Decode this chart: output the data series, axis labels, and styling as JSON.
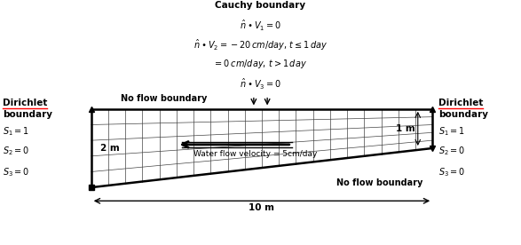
{
  "title": "Cauchy boundary",
  "eq1": "$\\hat{n}\\bullet V_1 = 0$",
  "eq2": "$\\hat{n}\\bullet V_2 = -20\\,cm/day,\\, t\\leq 1\\,day$",
  "eq3": "$= 0\\,cm/day,\\, t > 1\\,day$",
  "eq4": "$\\hat{n}\\bullet V_3 = 0$",
  "no_flow_top": "No flow boundary",
  "no_flow_bottom": "No flow boundary",
  "left_label1": "Dirichlet",
  "left_label2": "boundary",
  "left_s1": "$S_1 = 1$",
  "left_s2": "$S_2 = 0$",
  "left_s3": "$S_3 = 0$",
  "right_label1": "Dirichlet",
  "right_label2": "boundary",
  "right_s1": "$S_1 = 1$",
  "right_s2": "$S_2 = 0$",
  "right_s3": "$S_3 = 0$",
  "dim_2m": "2 m",
  "dim_1m": "1 m",
  "dim_10m": "10 m",
  "velocity_label": "Water flow velocity = 5cm/day",
  "grid_color": "#444444",
  "bg_color": "#ffffff",
  "n_cols": 20,
  "n_rows": 5,
  "TL": [
    0.175,
    0.555
  ],
  "TR": [
    0.83,
    0.555
  ],
  "BL": [
    0.175,
    0.235
  ],
  "BR": [
    0.83,
    0.395
  ]
}
